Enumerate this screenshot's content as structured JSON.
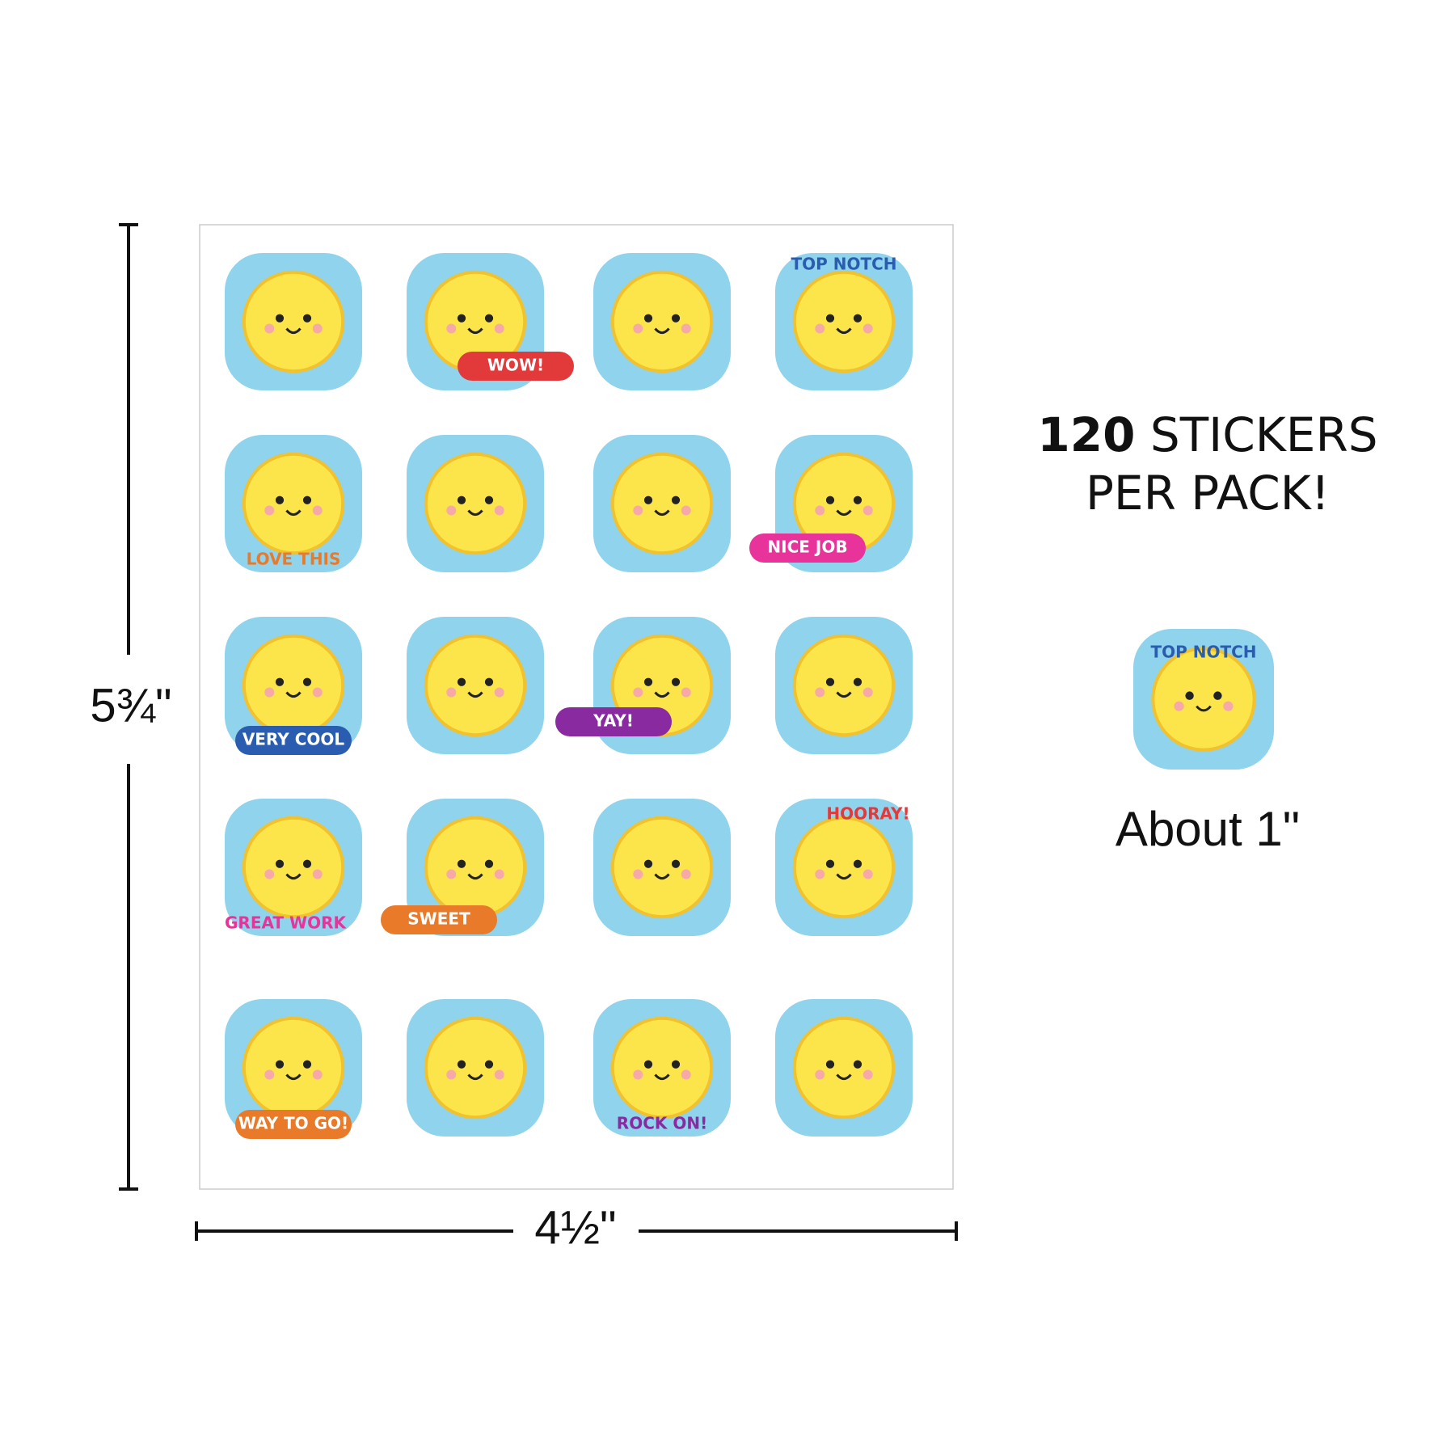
{
  "dimensions": {
    "height": "5¾\"",
    "width": "4½\""
  },
  "pack": {
    "count": "120",
    "unit": "STICKERS",
    "line2": "PER PACK!"
  },
  "sheet": {
    "sticker_labels": [
      "TOP NOTCH",
      "WOW!",
      "LOVE THIS",
      "NICE JOB",
      "VERY COOL",
      "YAY!",
      "GREAT WORK",
      "SWEET",
      "HOORAY!",
      "WAY TO GO!",
      "ROCK ON!"
    ]
  },
  "sample": {
    "label": "TOP NOTCH",
    "size": "About 1\""
  }
}
